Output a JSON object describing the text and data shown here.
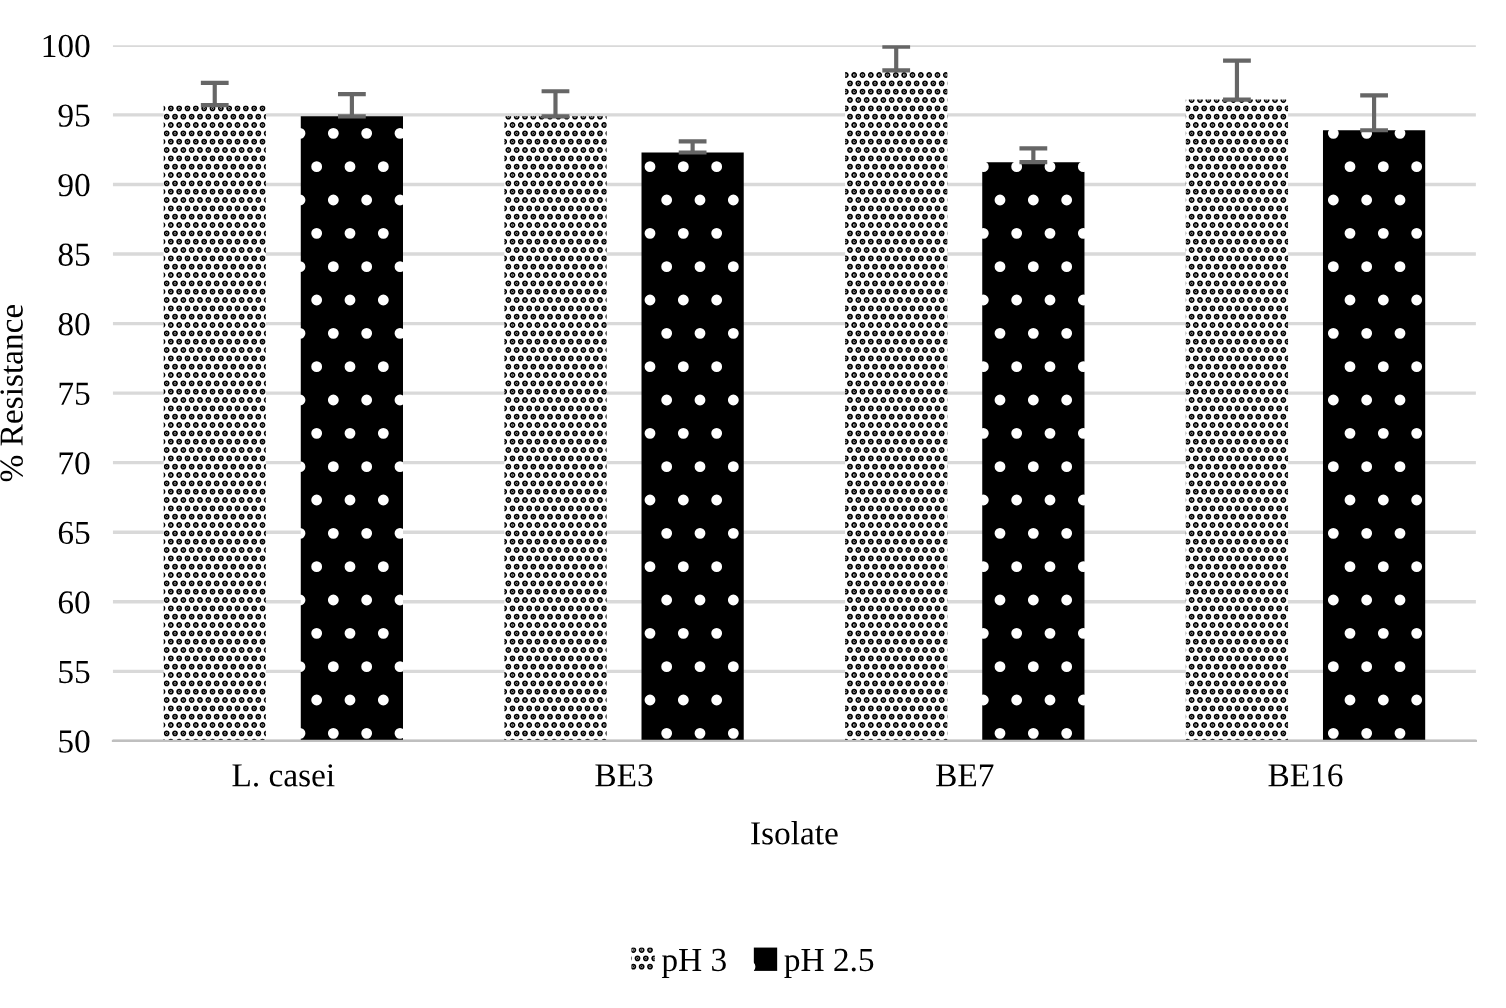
{
  "chart_data": {
    "type": "bar",
    "xlabel": "Isolate",
    "ylabel": "% Resistance",
    "categories": [
      "L. casei",
      "BE3",
      "BE7",
      "BE16"
    ],
    "series": [
      {
        "name": "pH 3",
        "color": "#ffffff",
        "values": [
          95.7,
          94.9,
          98.2,
          96.1
        ],
        "errors": [
          1.6,
          1.8,
          1.7,
          2.8
        ]
      },
      {
        "name": "pH 2.5",
        "color": "#000000",
        "values": [
          94.9,
          92.3,
          91.6,
          93.9
        ],
        "errors": [
          1.6,
          0.8,
          1.0,
          2.5
        ]
      }
    ],
    "ylim": [
      50,
      100
    ],
    "yticks": [
      50,
      55,
      60,
      65,
      70,
      75,
      80,
      85,
      90,
      95,
      100
    ],
    "grid": "y",
    "legend": "bottom"
  }
}
